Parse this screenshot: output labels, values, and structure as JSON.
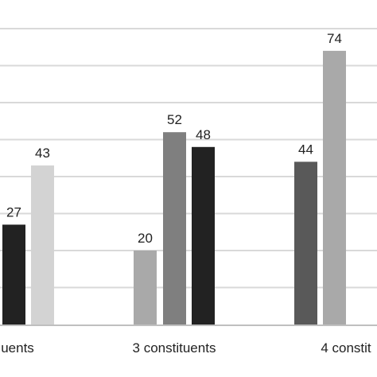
{
  "chart_data": {
    "type": "bar",
    "title": "",
    "xlabel": "",
    "ylabel": "",
    "ylim": [
      0,
      80
    ],
    "grid": true,
    "gridline_step": 10,
    "categories": [
      "uents",
      "3 constituents",
      "4 constit"
    ],
    "groups": [
      {
        "category": "uents",
        "bars": [
          {
            "value": 27,
            "label": "27",
            "color": "#222222"
          },
          {
            "value": 43,
            "label": "43",
            "color": "#d3d3d3"
          }
        ]
      },
      {
        "category": "3 constituents",
        "bars": [
          {
            "value": 20,
            "label": "20",
            "color": "#a9a9a9"
          },
          {
            "value": 52,
            "label": "52",
            "color": "#7f7f7f"
          },
          {
            "value": 48,
            "label": "48",
            "color": "#222222"
          }
        ]
      },
      {
        "category": "4 constit",
        "bars": [
          {
            "value": 44,
            "label": "44",
            "color": "#595959"
          },
          {
            "value": 74,
            "label": "74",
            "color": "#a9a9a9"
          }
        ]
      }
    ],
    "colors": {
      "grid": "#d9d9d9",
      "axis": "#bfbfbf",
      "text": "#222222"
    }
  }
}
